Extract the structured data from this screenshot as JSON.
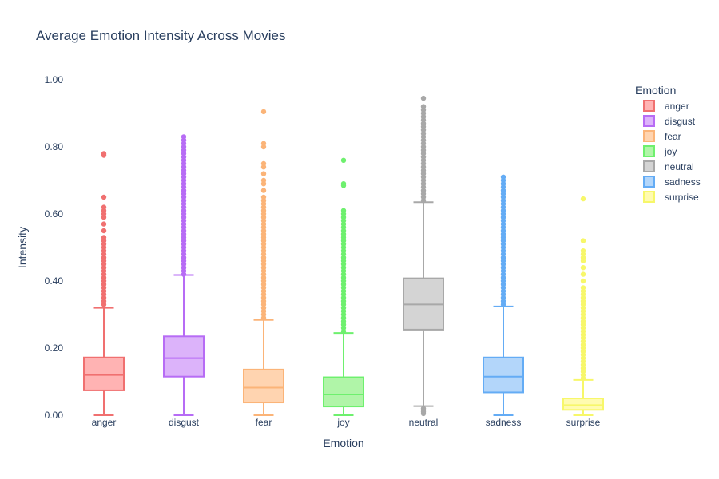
{
  "chart_data": {
    "type": "box",
    "title": "Average Emotion Intensity Across Movies",
    "xlabel": "Emotion",
    "ylabel": "Intensity",
    "ylim": [
      0,
      1.0
    ],
    "yticks": [
      "0.00",
      "0.20",
      "0.40",
      "0.60",
      "0.80",
      "1.00"
    ],
    "grid": false,
    "legend": {
      "title": "Emotion",
      "placement": "top-right"
    },
    "categories": [
      "anger",
      "disgust",
      "fear",
      "joy",
      "neutral",
      "sadness",
      "surprise"
    ],
    "series": [
      {
        "name": "anger",
        "color": "#EF553B",
        "line": "#f07070",
        "fill": "#ffb3b3",
        "min": 0.0,
        "q1": 0.074,
        "median": 0.12,
        "q3": 0.172,
        "upper_fence": 0.32,
        "outliers": [
          0.33,
          0.34,
          0.35,
          0.36,
          0.37,
          0.38,
          0.39,
          0.4,
          0.41,
          0.42,
          0.43,
          0.44,
          0.45,
          0.46,
          0.47,
          0.48,
          0.49,
          0.5,
          0.51,
          0.52,
          0.53,
          0.55,
          0.57,
          0.59,
          0.6,
          0.61,
          0.62,
          0.65,
          0.775,
          0.78
        ]
      },
      {
        "name": "disgust",
        "color": "#AB63FA",
        "line": "#b76cf5",
        "fill": "#dcb3fa",
        "min": 0.0,
        "q1": 0.115,
        "median": 0.17,
        "q3": 0.235,
        "upper_fence": 0.418,
        "outliers": [
          0.42,
          0.43,
          0.44,
          0.45,
          0.46,
          0.47,
          0.48,
          0.49,
          0.5,
          0.51,
          0.52,
          0.53,
          0.54,
          0.55,
          0.56,
          0.57,
          0.58,
          0.59,
          0.6,
          0.61,
          0.62,
          0.63,
          0.64,
          0.65,
          0.66,
          0.67,
          0.68,
          0.69,
          0.7,
          0.71,
          0.72,
          0.73,
          0.74,
          0.75,
          0.76,
          0.77,
          0.78,
          0.79,
          0.8,
          0.81,
          0.82,
          0.83
        ]
      },
      {
        "name": "fear",
        "color": "#FFA15A",
        "line": "#fbb478",
        "fill": "#ffd4b0",
        "min": 0.0,
        "q1": 0.038,
        "median": 0.082,
        "q3": 0.136,
        "upper_fence": 0.284,
        "outliers": [
          0.29,
          0.3,
          0.31,
          0.32,
          0.33,
          0.34,
          0.35,
          0.36,
          0.37,
          0.38,
          0.39,
          0.4,
          0.41,
          0.42,
          0.43,
          0.44,
          0.45,
          0.46,
          0.47,
          0.48,
          0.49,
          0.5,
          0.51,
          0.52,
          0.53,
          0.54,
          0.55,
          0.56,
          0.57,
          0.58,
          0.59,
          0.6,
          0.61,
          0.62,
          0.63,
          0.64,
          0.65,
          0.67,
          0.69,
          0.7,
          0.72,
          0.74,
          0.75,
          0.8,
          0.81,
          0.905
        ]
      },
      {
        "name": "joy",
        "color": "#00CC96",
        "line": "#6ef06e",
        "fill": "#b0f5a8",
        "min": 0.0,
        "q1": 0.026,
        "median": 0.062,
        "q3": 0.113,
        "upper_fence": 0.245,
        "outliers": [
          0.25,
          0.26,
          0.27,
          0.28,
          0.29,
          0.3,
          0.31,
          0.32,
          0.33,
          0.34,
          0.35,
          0.36,
          0.37,
          0.38,
          0.39,
          0.4,
          0.41,
          0.42,
          0.43,
          0.44,
          0.45,
          0.46,
          0.47,
          0.48,
          0.49,
          0.5,
          0.51,
          0.52,
          0.53,
          0.54,
          0.55,
          0.56,
          0.57,
          0.58,
          0.59,
          0.6,
          0.61,
          0.685,
          0.69,
          0.76
        ]
      },
      {
        "name": "neutral",
        "color": "#B0B0B0",
        "line": "#a8a8a8",
        "fill": "#d4d4d4",
        "min": 0.027,
        "q1": 0.255,
        "median": 0.33,
        "q3": 0.408,
        "upper_fence": 0.635,
        "outliers": [
          0.005,
          0.01,
          0.015,
          0.02,
          0.64,
          0.65,
          0.66,
          0.67,
          0.68,
          0.69,
          0.7,
          0.71,
          0.72,
          0.73,
          0.74,
          0.75,
          0.76,
          0.77,
          0.78,
          0.79,
          0.8,
          0.81,
          0.82,
          0.83,
          0.84,
          0.85,
          0.86,
          0.87,
          0.88,
          0.89,
          0.9,
          0.91,
          0.92,
          0.945
        ]
      },
      {
        "name": "sadness",
        "color": "#636EFA",
        "line": "#64acf5",
        "fill": "#b3d6fa",
        "min": 0.0,
        "q1": 0.068,
        "median": 0.115,
        "q3": 0.172,
        "upper_fence": 0.324,
        "outliers": [
          0.33,
          0.34,
          0.35,
          0.36,
          0.37,
          0.38,
          0.39,
          0.4,
          0.41,
          0.42,
          0.43,
          0.44,
          0.45,
          0.46,
          0.47,
          0.48,
          0.49,
          0.5,
          0.51,
          0.52,
          0.53,
          0.54,
          0.55,
          0.56,
          0.57,
          0.58,
          0.59,
          0.6,
          0.61,
          0.62,
          0.63,
          0.64,
          0.65,
          0.66,
          0.67,
          0.68,
          0.69,
          0.7,
          0.71
        ]
      },
      {
        "name": "surprise",
        "color": "#FECB52",
        "line": "#f7f76a",
        "fill": "#fffbb0",
        "min": 0.0,
        "q1": 0.016,
        "median": 0.03,
        "q3": 0.05,
        "upper_fence": 0.105,
        "outliers": [
          0.11,
          0.12,
          0.13,
          0.14,
          0.15,
          0.16,
          0.17,
          0.18,
          0.19,
          0.2,
          0.21,
          0.22,
          0.23,
          0.24,
          0.25,
          0.26,
          0.27,
          0.28,
          0.29,
          0.3,
          0.31,
          0.32,
          0.33,
          0.34,
          0.35,
          0.36,
          0.37,
          0.38,
          0.4,
          0.42,
          0.44,
          0.46,
          0.47,
          0.48,
          0.49,
          0.52,
          0.645
        ]
      }
    ]
  }
}
